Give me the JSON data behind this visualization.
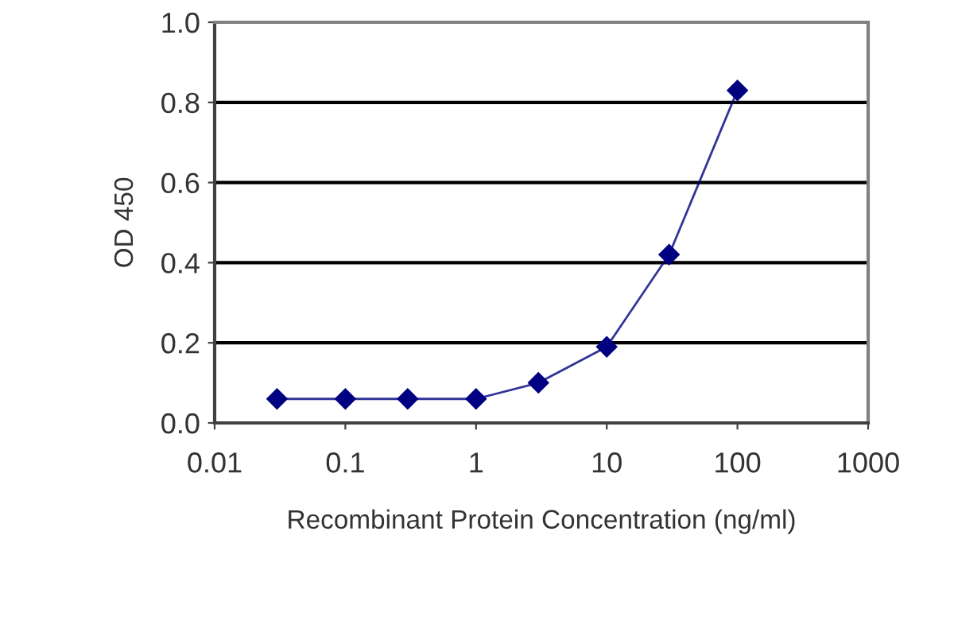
{
  "chart_data": {
    "type": "line",
    "xlabel": "Recombinant Protein Concentration (ng/ml)",
    "ylabel": "OD 450",
    "x": [
      0.03,
      0.1,
      0.3,
      1,
      3,
      10,
      30,
      100
    ],
    "series": [
      {
        "color": "#000080",
        "values": [
          0.06,
          0.06,
          0.06,
          0.06,
          0.1,
          0.19,
          0.42,
          0.83
        ]
      }
    ],
    "log": "x",
    "xlim": [
      0.01,
      1000
    ],
    "xticks": [
      0.01,
      0.1,
      1,
      10,
      100,
      1000
    ],
    "ylim": [
      0,
      1.0
    ],
    "yticks": [
      {
        "value": 0,
        "label": "0.0"
      },
      {
        "value": 0.2,
        "label": "0.2"
      },
      {
        "value": 0.4,
        "label": "0.4"
      },
      {
        "value": 0.6,
        "label": "0.6"
      },
      {
        "value": 0.8,
        "label": "0.8"
      },
      {
        "value": 1.0,
        "label": "1.0"
      }
    ],
    "grid": "y",
    "marker": "diamond",
    "line_style": "solid",
    "legend": false
  }
}
